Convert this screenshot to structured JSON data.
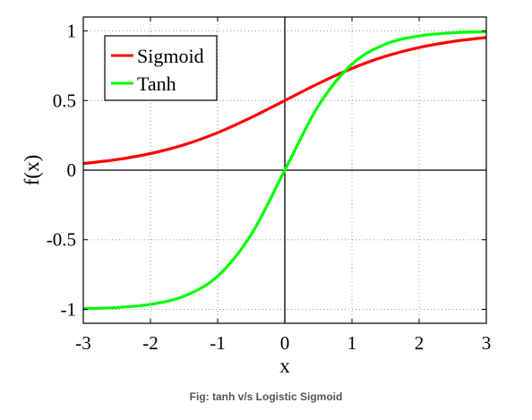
{
  "caption": "Fig: tanh v/s Logistic Sigmoid",
  "chart_data": {
    "type": "line",
    "title": "",
    "xlabel": "x",
    "ylabel": "f(x)",
    "xlim": [
      -3,
      3
    ],
    "ylim": [
      -1.1,
      1.1
    ],
    "xticks": [
      -3,
      -2,
      -1,
      0,
      1,
      2,
      3
    ],
    "yticks": [
      -1,
      -0.5,
      0,
      0.5,
      1
    ],
    "xtick_labels": [
      "-3",
      "-2",
      "-1",
      "0",
      "1",
      "2",
      "3"
    ],
    "ytick_labels": [
      "-1",
      "-0.5",
      "0",
      "0.5",
      "1"
    ],
    "grid": true,
    "legend_position": "top-left",
    "x": [
      -3,
      -2.5,
      -2,
      -1.5,
      -1,
      -0.5,
      0,
      0.5,
      1,
      1.5,
      2,
      2.5,
      3
    ],
    "series": [
      {
        "name": "Sigmoid",
        "color": "#ff0000",
        "values": [
          0.047,
          0.076,
          0.119,
          0.182,
          0.269,
          0.378,
          0.5,
          0.622,
          0.731,
          0.818,
          0.881,
          0.924,
          0.953
        ]
      },
      {
        "name": "Tanh",
        "color": "#00ff00",
        "values": [
          -0.995,
          -0.987,
          -0.964,
          -0.905,
          -0.762,
          -0.462,
          0.0,
          0.462,
          0.762,
          0.905,
          0.964,
          0.987,
          0.995
        ]
      }
    ]
  }
}
